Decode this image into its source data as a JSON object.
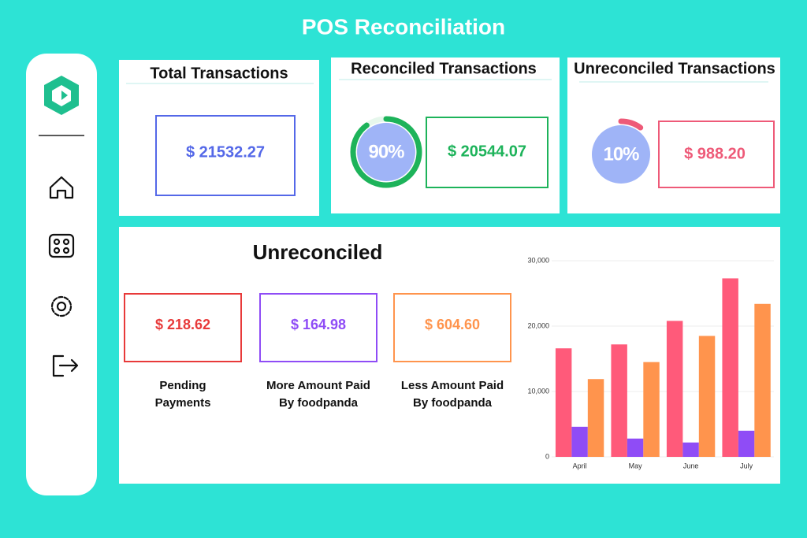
{
  "header": {
    "title": "POS Reconciliation"
  },
  "cards": [
    {
      "title": "Total Transactions",
      "amount": "$ 21532.27"
    },
    {
      "title": "Reconciled Transactions",
      "percent": {
        "value": 90,
        "label": "90%"
      },
      "amount": "$ 20544.07"
    },
    {
      "title": "Unreconciled Transactions",
      "percent": {
        "value": 10,
        "label": "10%"
      },
      "amount": "$ 988.20"
    }
  ],
  "unreconciled": {
    "title": "Unreconciled",
    "items": [
      {
        "amount": "$ 218.62",
        "label": [
          "Pending",
          "Payments"
        ]
      },
      {
        "amount": "$ 164.98",
        "label": [
          "More Amount Paid",
          "By foodpanda"
        ]
      },
      {
        "amount": "$ 604.60",
        "label": [
          "Less Amount Paid",
          "By foodpanda"
        ]
      }
    ]
  },
  "chart_data": {
    "type": "bar",
    "categories": [
      "April",
      "May",
      "June",
      "July"
    ],
    "series": [
      {
        "color": "#ff5a7a",
        "values": [
          16600,
          17200,
          20800,
          27300
        ]
      },
      {
        "color": "#8f4cf6",
        "values": [
          4600,
          2800,
          2200,
          4000
        ]
      },
      {
        "color": "#ff944d",
        "values": [
          11900,
          14500,
          18500,
          23400
        ]
      }
    ],
    "ylim": [
      0,
      30000
    ],
    "yticks": [
      0,
      {
        "value": 10000,
        "label": "10,000"
      },
      {
        "value": 20000,
        "label": "20,000"
      },
      {
        "value": 30000,
        "label": "30,000"
      }
    ],
    "grid": true
  }
}
